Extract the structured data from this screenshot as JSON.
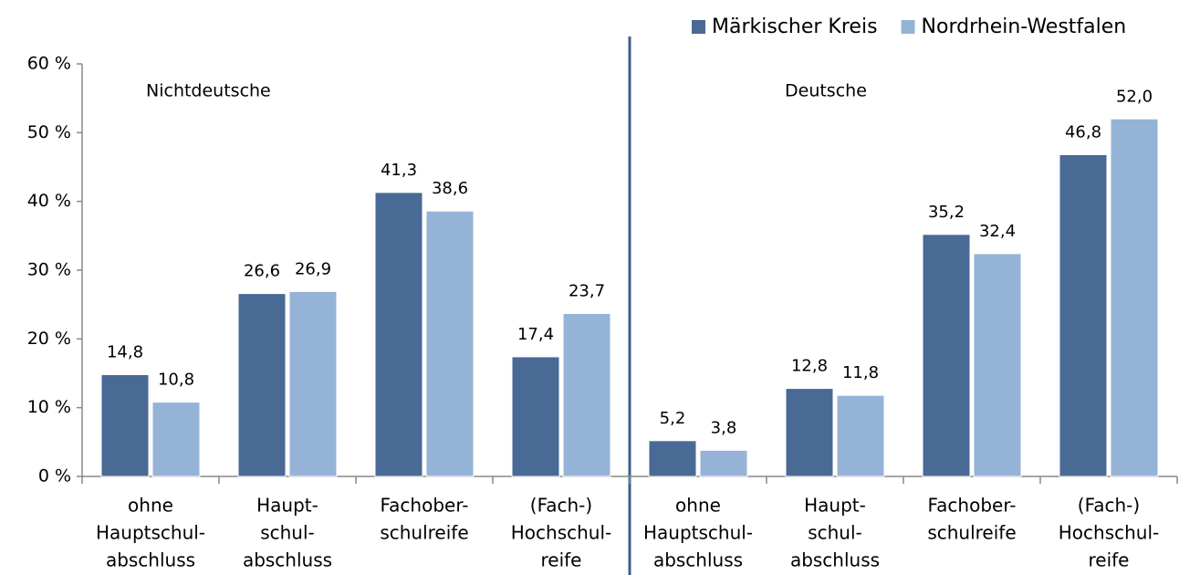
{
  "chart_data": {
    "type": "bar",
    "legend": "top-right",
    "group_labels": [
      "Nichtdeutsche",
      "Deutsche"
    ],
    "categories": [
      [
        "ohne",
        "Hauptschul-",
        "abschluss"
      ],
      [
        "Haupt-",
        "schul-",
        "abschluss"
      ],
      [
        "Fachober-",
        "schulreife"
      ],
      [
        "(Fach-)",
        "Hochschul-",
        "reife"
      ],
      [
        "ohne",
        "Hauptschul-",
        "abschluss"
      ],
      [
        "Haupt-",
        "schul-",
        "abschluss"
      ],
      [
        "Fachober-",
        "schulreife"
      ],
      [
        "(Fach-)",
        "Hochschul-",
        "reife"
      ]
    ],
    "series": [
      {
        "name": "Märkischer Kreis",
        "color": "#4a6a96",
        "values": [
          14.8,
          26.6,
          41.3,
          17.4,
          5.2,
          12.8,
          35.2,
          46.8
        ],
        "value_labels": [
          "14,8",
          "26,6",
          "41,3",
          "17,4",
          "5,2",
          "12,8",
          "35,2",
          "46,8"
        ]
      },
      {
        "name": "Nordrhein-Westfalen",
        "color": "#95b3d7",
        "values": [
          10.8,
          26.9,
          38.6,
          23.7,
          3.8,
          11.8,
          32.4,
          52.0
        ],
        "value_labels": [
          "10,8",
          "26,9",
          "38,6",
          "23,7",
          "3,8",
          "11,8",
          "32,4",
          "52,0"
        ]
      }
    ],
    "ylim": [
      0,
      60
    ],
    "yticks": [
      {
        "value": 0,
        "label": "0 %"
      },
      {
        "value": 10,
        "label": "10 %"
      },
      {
        "value": 20,
        "label": "20 %"
      },
      {
        "value": 30,
        "label": "30 %"
      },
      {
        "value": 40,
        "label": "40 %"
      },
      {
        "value": 50,
        "label": "50 %"
      },
      {
        "value": 60,
        "label": "60 %"
      }
    ],
    "grid": false
  }
}
